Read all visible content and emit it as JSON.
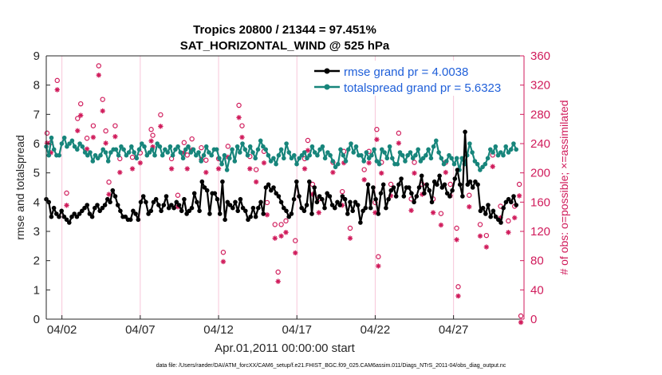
{
  "chart_data": {
    "type": "line",
    "title": "Tropics 20800 / 21344 = 97.451%",
    "subtitle": "SAT_HORIZONTAL_WIND @ 525 hPa",
    "xlabel": "Apr.01,2011 00:00:00 start",
    "ylabel": "rmse and totalspread",
    "y2label": "# of obs: o=possible; ×=assimilated",
    "footnote": "data file: /Users/raeder/DAI/ATM_forcXX/CAM6_setup/f.e21.FHIST_BGC.f09_025.CAM6assim.011/Diags_NTrS_2011-04/obs_diag_output.nc",
    "x_tick_labels": [
      "04/02",
      "04/07",
      "04/12",
      "04/17",
      "04/22",
      "04/27"
    ],
    "x_tick_days": [
      1,
      6,
      11,
      16,
      21,
      26
    ],
    "xlim_days": [
      0,
      30.5
    ],
    "ylim": [
      0,
      9
    ],
    "y_ticks": [
      "0",
      "1",
      "2",
      "3",
      "4",
      "5",
      "6",
      "7",
      "8",
      "9"
    ],
    "y2lim": [
      0,
      360
    ],
    "y2_ticks": [
      "0",
      "40",
      "80",
      "120",
      "160",
      "200",
      "240",
      "280",
      "320",
      "360"
    ],
    "grid": "vertical at x ticks",
    "legend_position": "top-right",
    "series": [
      {
        "name": "rmse",
        "legend": "rmse grand pr = 4.0038",
        "color": "#000000",
        "axis": "left",
        "values": [
          4.1,
          4.0,
          3.5,
          3.8,
          3.6,
          3.5,
          3.7,
          3.5,
          3.4,
          3.3,
          3.5,
          3.6,
          3.5,
          3.6,
          3.7,
          3.8,
          3.9,
          3.6,
          3.5,
          3.8,
          3.9,
          3.7,
          3.8,
          3.9,
          4.1,
          4.0,
          4.4,
          4.2,
          3.9,
          3.7,
          3.5,
          3.5,
          3.4,
          3.4,
          3.7,
          3.6,
          3.4,
          4.0,
          4.2,
          4.0,
          3.6,
          3.7,
          4.0,
          4.1,
          3.9,
          3.7,
          3.9,
          4.2,
          3.8,
          3.9,
          3.8,
          4.0,
          3.9,
          3.7,
          4.1,
          3.6,
          3.7,
          3.8,
          4.3,
          4.0,
          3.7,
          4.7,
          4.5,
          4.4,
          3.6,
          4.3,
          4.3,
          4.1,
          3.6,
          4.7,
          3.4,
          4.0,
          3.9,
          3.8,
          4.0,
          3.7,
          4.1,
          3.8,
          3.7,
          3.4,
          3.5,
          3.8,
          3.5,
          3.8,
          4.0,
          3.6,
          4.5,
          4.6,
          4.4,
          4.5,
          4.3,
          4.2,
          4.0,
          3.8,
          3.7,
          3.5,
          3.6,
          4.1,
          4.7,
          4.2,
          3.8,
          3.7,
          3.9,
          4.7,
          3.6,
          4.5,
          4.0,
          4.2,
          4.1,
          3.8,
          4.3,
          4.2,
          3.9,
          3.8,
          4.0,
          3.9,
          4.2,
          4.1,
          3.6,
          4.0,
          3.7,
          4.0,
          3.9,
          3.3,
          3.7,
          3.8,
          4.6,
          3.8,
          4.5,
          4.1,
          3.6,
          4.3,
          4.6,
          3.8,
          4.1,
          4.4,
          4.5,
          4.2,
          4.6,
          4.8,
          4.2,
          4.5,
          4.5,
          4.3,
          4.0,
          4.2,
          4.5,
          4.9,
          4.3,
          4.6,
          4.4,
          4.0,
          4.7,
          4.6,
          4.9,
          4.5,
          4.6,
          4.3,
          4.2,
          4.4,
          4.8,
          5.1,
          4.6,
          4.2,
          6.4,
          4.6,
          4.7,
          4.5,
          4.7,
          4.6,
          3.7,
          3.8,
          3.6,
          3.9,
          3.5,
          3.7,
          3.5,
          3.4,
          3.3,
          3.8,
          4.0,
          4.1,
          4.0,
          4.2,
          3.9
        ]
      },
      {
        "name": "totalspread",
        "legend": "totalspread grand pr = 5.6323",
        "color": "#17857b",
        "axis": "left",
        "values": [
          5.9,
          5.6,
          6.2,
          5.8,
          5.6,
          5.6,
          6.0,
          6.2,
          5.9,
          6.0,
          6.1,
          5.9,
          5.8,
          6.0,
          5.9,
          5.7,
          5.6,
          5.7,
          5.4,
          5.6,
          5.5,
          5.6,
          5.8,
          5.7,
          5.4,
          5.7,
          5.8,
          5.8,
          5.6,
          5.9,
          5.8,
          5.6,
          5.7,
          5.9,
          5.7,
          5.5,
          5.8,
          6.0,
          5.9,
          5.6,
          5.7,
          5.8,
          5.6,
          6.0,
          5.9,
          5.6,
          5.8,
          5.7,
          5.9,
          5.6,
          5.8,
          5.9,
          5.7,
          5.5,
          5.8,
          5.9,
          5.7,
          5.8,
          5.6,
          5.7,
          5.4,
          5.6,
          5.9,
          5.7,
          5.6,
          5.8,
          5.8,
          5.5,
          5.3,
          5.6,
          5.1,
          5.5,
          5.8,
          5.4,
          5.9,
          5.7,
          6.0,
          5.8,
          5.6,
          5.9,
          5.7,
          5.5,
          5.8,
          6.1,
          5.9,
          5.8,
          5.6,
          5.4,
          5.5,
          5.3,
          5.6,
          5.8,
          5.5,
          6.0,
          5.7,
          5.5,
          5.6,
          5.3,
          5.5,
          5.6,
          5.7,
          5.5,
          5.6,
          5.9,
          5.7,
          5.6,
          5.8,
          5.9,
          5.5,
          5.7,
          5.6,
          5.4,
          5.2,
          5.3,
          5.8,
          5.6,
          5.4,
          5.8,
          6.0,
          5.7,
          5.9,
          5.6,
          5.6,
          5.4,
          5.7,
          5.5,
          5.6,
          5.8,
          5.4,
          5.3,
          5.8,
          5.7,
          5.5,
          5.9,
          5.5,
          5.3,
          5.3,
          5.7,
          5.6,
          5.4,
          5.6,
          5.7,
          5.5,
          5.6,
          5.8,
          5.4,
          5.5,
          5.6,
          5.8,
          5.5,
          5.9,
          6.1,
          5.7,
          5.5,
          5.3,
          5.4,
          5.6,
          5.5,
          5.3,
          5.5,
          5.1,
          5.5,
          5.3,
          5.6,
          6.0,
          5.7,
          5.4,
          5.3,
          5.1,
          5.2,
          5.3,
          5.5,
          5.8,
          5.7,
          5.9,
          5.6,
          5.7,
          5.6,
          5.9,
          5.7,
          5.8,
          6.0,
          5.8
        ]
      },
      {
        "name": "obs possible",
        "color": "#d01b5b",
        "axis": "right",
        "marker": "o",
        "points": [
          [
            0.05,
            250
          ],
          [
            0.3,
            237
          ],
          [
            0.7,
            322
          ],
          [
            1.3,
            168
          ],
          [
            2.0,
            270
          ],
          [
            2.2,
            290
          ],
          [
            2.6,
            243
          ],
          [
            3.0,
            260
          ],
          [
            3.35,
            342
          ],
          [
            3.6,
            296
          ],
          [
            3.8,
            253
          ],
          [
            4.0,
            183
          ],
          [
            4.4,
            260
          ],
          [
            4.7,
            215
          ],
          [
            5.5,
            217
          ],
          [
            6.0,
            223
          ],
          [
            6.7,
            255
          ],
          [
            6.8,
            247
          ],
          [
            7.3,
            275
          ],
          [
            8.0,
            215
          ],
          [
            8.4,
            165
          ],
          [
            8.8,
            237
          ],
          [
            9.0,
            220
          ],
          [
            9.3,
            242
          ],
          [
            9.9,
            230
          ],
          [
            10.2,
            213
          ],
          [
            11.0,
            215
          ],
          [
            11.6,
            232
          ],
          [
            12.3,
            288
          ],
          [
            12.5,
            260
          ],
          [
            13.0,
            218
          ],
          [
            13.4,
            200
          ],
          [
            13.9,
            225
          ],
          [
            14.1,
            155
          ],
          [
            14.6,
            125
          ],
          [
            15.0,
            125
          ],
          [
            15.3,
            130
          ],
          [
            15.9,
            103
          ],
          [
            16.5,
            215
          ],
          [
            16.7,
            240
          ],
          [
            17.0,
            180
          ],
          [
            17.4,
            160
          ],
          [
            18.3,
            210
          ],
          [
            18.9,
            170
          ],
          [
            19.0,
            225
          ],
          [
            19.4,
            120
          ],
          [
            20.3,
            200
          ],
          [
            20.6,
            225
          ],
          [
            21.0,
            155
          ],
          [
            21.1,
            255
          ],
          [
            21.4,
            210
          ],
          [
            22.0,
            180
          ],
          [
            22.5,
            250
          ],
          [
            23.3,
            160
          ],
          [
            23.5,
            210
          ],
          [
            24.0,
            180
          ],
          [
            24.7,
            160
          ],
          [
            25.2,
            140
          ],
          [
            25.5,
            210
          ],
          [
            25.8,
            180
          ],
          [
            26.2,
            120
          ],
          [
            27.0,
            165
          ],
          [
            27.7,
            125
          ],
          [
            28.1,
            110
          ],
          [
            28.5,
            220
          ],
          [
            29.0,
            150
          ],
          [
            29.5,
            130
          ],
          [
            29.9,
            150
          ],
          [
            30.2,
            180
          ],
          [
            30.3,
            0
          ]
        ]
      },
      {
        "name": "obs assimilated",
        "color": "#d01b5b",
        "axis": "right",
        "marker": "x",
        "points": [
          [
            0.05,
            245
          ],
          [
            0.3,
            232
          ],
          [
            0.7,
            318
          ],
          [
            1.3,
            160
          ],
          [
            2.0,
            262
          ],
          [
            2.2,
            283
          ],
          [
            2.6,
            237
          ],
          [
            3.0,
            253
          ],
          [
            3.35,
            338
          ],
          [
            3.6,
            289
          ],
          [
            3.8,
            245
          ],
          [
            4.0,
            175
          ],
          [
            4.4,
            254
          ],
          [
            4.7,
            205
          ],
          [
            5.5,
            210
          ],
          [
            6.0,
            218
          ],
          [
            6.7,
            248
          ],
          [
            6.8,
            240
          ],
          [
            7.3,
            268
          ],
          [
            8.0,
            210
          ],
          [
            8.4,
            158
          ],
          [
            8.8,
            232
          ],
          [
            9.0,
            210
          ],
          [
            9.3,
            236
          ],
          [
            9.9,
            223
          ],
          [
            10.2,
            205
          ],
          [
            11.0,
            210
          ],
          [
            11.6,
            226
          ],
          [
            12.3,
            280
          ],
          [
            12.5,
            253
          ],
          [
            13.0,
            210
          ],
          [
            13.4,
            192
          ],
          [
            13.9,
            218
          ],
          [
            14.1,
            147
          ],
          [
            14.6,
            115
          ],
          [
            15.0,
            118
          ],
          [
            15.3,
            123
          ],
          [
            15.9,
            95
          ],
          [
            16.5,
            210
          ],
          [
            16.7,
            235
          ],
          [
            17.0,
            175
          ],
          [
            17.4,
            150
          ],
          [
            18.3,
            205
          ],
          [
            18.9,
            160
          ],
          [
            19.0,
            218
          ],
          [
            19.4,
            115
          ],
          [
            20.3,
            195
          ],
          [
            20.6,
            218
          ],
          [
            21.0,
            150
          ],
          [
            21.1,
            250
          ],
          [
            21.4,
            204
          ],
          [
            22.0,
            173
          ],
          [
            22.5,
            245
          ],
          [
            23.3,
            153
          ],
          [
            23.5,
            204
          ],
          [
            24.0,
            175
          ],
          [
            24.7,
            150
          ],
          [
            25.2,
            133
          ],
          [
            25.5,
            205
          ],
          [
            25.8,
            173
          ],
          [
            26.2,
            113
          ],
          [
            27.0,
            158
          ],
          [
            27.7,
            118
          ],
          [
            28.1,
            103
          ],
          [
            28.5,
            213
          ],
          [
            29.0,
            143
          ],
          [
            29.5,
            123
          ],
          [
            29.9,
            143
          ],
          [
            30.2,
            173
          ],
          [
            30.3,
            0
          ]
        ]
      },
      {
        "name": "obs outliers",
        "color": "#d01b5b",
        "axis": "right",
        "marker": "o/x",
        "points": [
          [
            21.2,
            79
          ],
          [
            11.3,
            85
          ],
          [
            14.8,
            58
          ],
          [
            26.3,
            38
          ]
        ]
      }
    ]
  }
}
